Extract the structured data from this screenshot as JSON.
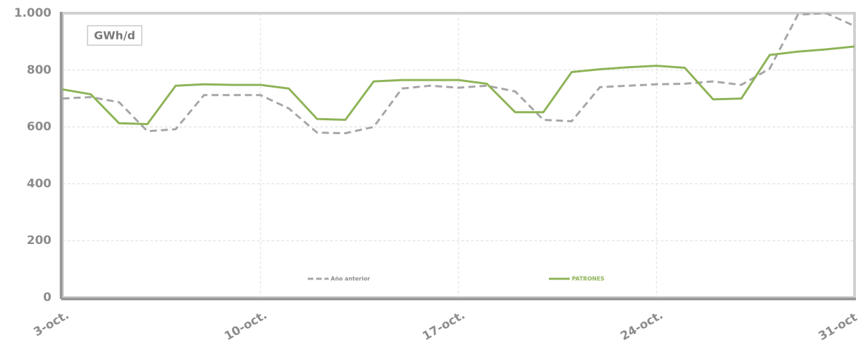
{
  "chart_data": {
    "type": "line",
    "annotation": "GWh/d",
    "categories": [
      "3-oct.",
      null,
      null,
      null,
      null,
      null,
      null,
      "10-oct.",
      null,
      null,
      null,
      null,
      null,
      null,
      "17-oct.",
      null,
      null,
      null,
      null,
      null,
      null,
      "24-oct.",
      null,
      null,
      null,
      null,
      null,
      null,
      "31-oct."
    ],
    "series": [
      {
        "name": "Año anterior",
        "color": "#a6a6a6",
        "dashed": true,
        "values": [
          700,
          705,
          687,
          585,
          592,
          712,
          712,
          712,
          665,
          580,
          578,
          600,
          735,
          745,
          738,
          745,
          725,
          625,
          620,
          740,
          745,
          750,
          752,
          760,
          748,
          805,
          995,
          1000,
          955
        ]
      },
      {
        "name": "PATRONES",
        "color": "#8db356",
        "dashed": false,
        "values": [
          732,
          715,
          613,
          610,
          745,
          750,
          748,
          748,
          735,
          628,
          625,
          760,
          765,
          765,
          765,
          752,
          652,
          652,
          793,
          803,
          810,
          815,
          808,
          697,
          700,
          853,
          865,
          873,
          883
        ]
      }
    ],
    "ylim": [
      0,
      1000
    ],
    "yticks": [
      0,
      200,
      400,
      600,
      800,
      {
        "value": 1000,
        "label": "1.000"
      }
    ],
    "grid": true
  }
}
